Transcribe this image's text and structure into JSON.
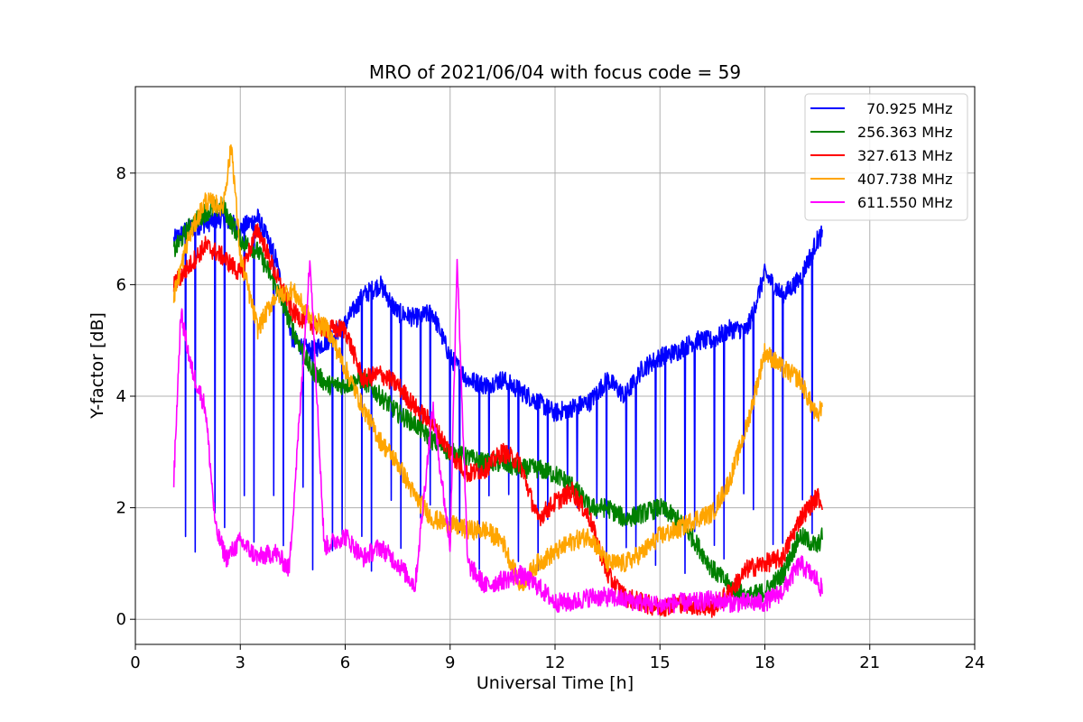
{
  "chart_data": {
    "type": "line",
    "title": "MRO of 2021/06/04 with focus code = 59",
    "xlabel": "Universal Time [h]",
    "ylabel": "Y-factor [dB]",
    "xlim": [
      0,
      24
    ],
    "ylim": [
      -0.45,
      9.55
    ],
    "xticks": [
      0,
      3,
      6,
      9,
      12,
      15,
      18,
      21,
      24
    ],
    "yticks": [
      0,
      2,
      4,
      6,
      8
    ],
    "grid": true,
    "legend_position": "top-right",
    "series": [
      {
        "name": "  70.925 MHz",
        "color": "#0000ff",
        "baseline": [
          [
            1.1,
            6.8
          ],
          [
            1.5,
            7.0
          ],
          [
            2.0,
            7.1
          ],
          [
            2.5,
            7.2
          ],
          [
            3.0,
            7.0
          ],
          [
            3.5,
            7.2
          ],
          [
            4.0,
            6.5
          ],
          [
            4.5,
            5.0
          ],
          [
            5.0,
            4.8
          ],
          [
            5.5,
            5.0
          ],
          [
            6.0,
            5.3
          ],
          [
            6.5,
            5.8
          ],
          [
            7.0,
            6.0
          ],
          [
            7.5,
            5.5
          ],
          [
            8.0,
            5.4
          ],
          [
            8.5,
            5.5
          ],
          [
            9.0,
            4.7
          ],
          [
            9.5,
            4.3
          ],
          [
            10.0,
            4.2
          ],
          [
            10.5,
            4.3
          ],
          [
            11.0,
            4.1
          ],
          [
            11.5,
            3.9
          ],
          [
            12.0,
            3.7
          ],
          [
            12.5,
            3.8
          ],
          [
            13.0,
            3.9
          ],
          [
            13.5,
            4.3
          ],
          [
            14.0,
            4.0
          ],
          [
            14.5,
            4.5
          ],
          [
            15.0,
            4.7
          ],
          [
            15.5,
            4.8
          ],
          [
            16.0,
            5.0
          ],
          [
            16.5,
            5.0
          ],
          [
            17.0,
            5.2
          ],
          [
            17.5,
            5.2
          ],
          [
            18.0,
            6.2
          ],
          [
            18.5,
            5.8
          ],
          [
            19.0,
            6.1
          ],
          [
            19.5,
            6.8
          ],
          [
            19.65,
            6.9
          ]
        ],
        "dip_interval_h": 0.28,
        "dip_value": 1.6,
        "dips_start": 1.15,
        "dips_end": 19.55
      },
      {
        "name": "256.363 MHz",
        "color": "#008000",
        "baseline": [
          [
            1.1,
            6.6
          ],
          [
            1.5,
            7.0
          ],
          [
            2.0,
            7.3
          ],
          [
            2.5,
            7.4
          ],
          [
            3.0,
            6.8
          ],
          [
            3.5,
            6.6
          ],
          [
            4.0,
            6.0
          ],
          [
            4.5,
            5.2
          ],
          [
            5.0,
            4.5
          ],
          [
            5.5,
            4.2
          ],
          [
            6.0,
            4.2
          ],
          [
            6.5,
            4.3
          ],
          [
            7.0,
            4.0
          ],
          [
            7.5,
            3.7
          ],
          [
            8.0,
            3.5
          ],
          [
            8.5,
            3.2
          ],
          [
            9.0,
            3.0
          ],
          [
            9.5,
            2.9
          ],
          [
            10.0,
            2.8
          ],
          [
            10.5,
            2.8
          ],
          [
            11.0,
            2.7
          ],
          [
            11.5,
            2.7
          ],
          [
            12.0,
            2.6
          ],
          [
            12.5,
            2.4
          ],
          [
            13.0,
            2.0
          ],
          [
            13.5,
            2.0
          ],
          [
            14.0,
            1.8
          ],
          [
            14.5,
            1.9
          ],
          [
            15.0,
            2.0
          ],
          [
            15.5,
            1.8
          ],
          [
            16.0,
            1.4
          ],
          [
            16.5,
            0.9
          ],
          [
            17.0,
            0.6
          ],
          [
            17.5,
            0.4
          ],
          [
            18.0,
            0.5
          ],
          [
            18.5,
            0.8
          ],
          [
            19.0,
            1.5
          ],
          [
            19.5,
            1.3
          ],
          [
            19.65,
            1.5
          ]
        ]
      },
      {
        "name": "327.613 MHz",
        "color": "#ff0000",
        "baseline": [
          [
            1.1,
            6.0
          ],
          [
            1.5,
            6.3
          ],
          [
            2.0,
            6.7
          ],
          [
            2.5,
            6.5
          ],
          [
            3.0,
            6.2
          ],
          [
            3.5,
            7.0
          ],
          [
            4.0,
            6.2
          ],
          [
            4.5,
            5.5
          ],
          [
            5.0,
            5.3
          ],
          [
            5.5,
            5.2
          ],
          [
            6.0,
            5.2
          ],
          [
            6.5,
            4.3
          ],
          [
            7.0,
            4.4
          ],
          [
            7.5,
            4.2
          ],
          [
            8.0,
            3.8
          ],
          [
            8.5,
            3.5
          ],
          [
            9.0,
            3.0
          ],
          [
            9.5,
            2.6
          ],
          [
            10.0,
            2.7
          ],
          [
            10.5,
            3.0
          ],
          [
            11.0,
            2.8
          ],
          [
            11.5,
            1.8
          ],
          [
            12.0,
            2.1
          ],
          [
            12.5,
            2.3
          ],
          [
            13.0,
            1.8
          ],
          [
            13.5,
            0.8
          ],
          [
            14.0,
            0.4
          ],
          [
            14.5,
            0.3
          ],
          [
            15.0,
            0.2
          ],
          [
            15.5,
            0.3
          ],
          [
            16.0,
            0.25
          ],
          [
            16.5,
            0.2
          ],
          [
            17.0,
            0.5
          ],
          [
            17.5,
            0.9
          ],
          [
            18.0,
            1.0
          ],
          [
            18.5,
            1.1
          ],
          [
            19.0,
            1.8
          ],
          [
            19.5,
            2.2
          ],
          [
            19.65,
            2.1
          ]
        ]
      },
      {
        "name": "407.738 MHz",
        "color": "#ffa500",
        "baseline": [
          [
            1.1,
            5.8
          ],
          [
            1.5,
            6.8
          ],
          [
            2.0,
            7.5
          ],
          [
            2.5,
            7.4
          ],
          [
            2.75,
            8.5
          ],
          [
            3.0,
            6.5
          ],
          [
            3.5,
            5.2
          ],
          [
            4.0,
            5.8
          ],
          [
            4.5,
            5.9
          ],
          [
            5.0,
            5.4
          ],
          [
            5.5,
            5.2
          ],
          [
            6.0,
            4.5
          ],
          [
            6.5,
            3.8
          ],
          [
            7.0,
            3.2
          ],
          [
            7.5,
            2.8
          ],
          [
            8.0,
            2.2
          ],
          [
            8.5,
            1.8
          ],
          [
            9.0,
            1.7
          ],
          [
            9.5,
            1.6
          ],
          [
            10.0,
            1.6
          ],
          [
            10.5,
            1.4
          ],
          [
            11.0,
            0.6
          ],
          [
            11.5,
            1.0
          ],
          [
            12.0,
            1.2
          ],
          [
            12.5,
            1.4
          ],
          [
            13.0,
            1.5
          ],
          [
            13.5,
            1.0
          ],
          [
            14.0,
            1.0
          ],
          [
            14.5,
            1.2
          ],
          [
            15.0,
            1.5
          ],
          [
            15.5,
            1.6
          ],
          [
            16.0,
            1.8
          ],
          [
            16.5,
            1.9
          ],
          [
            17.0,
            2.5
          ],
          [
            17.5,
            3.5
          ],
          [
            18.0,
            4.8
          ],
          [
            18.5,
            4.5
          ],
          [
            19.0,
            4.3
          ],
          [
            19.5,
            3.6
          ],
          [
            19.65,
            3.9
          ]
        ]
      },
      {
        "name": "611.550 MHz",
        "color": "#ff00ff",
        "baseline": [
          [
            1.1,
            2.5
          ],
          [
            1.3,
            5.5
          ],
          [
            1.6,
            4.5
          ],
          [
            2.0,
            3.8
          ],
          [
            2.3,
            1.6
          ],
          [
            2.6,
            1.1
          ],
          [
            3.0,
            1.4
          ],
          [
            3.5,
            1.1
          ],
          [
            4.0,
            1.2
          ],
          [
            4.4,
            0.9
          ],
          [
            5.0,
            6.5
          ],
          [
            5.4,
            1.3
          ],
          [
            6.0,
            1.5
          ],
          [
            6.5,
            1.1
          ],
          [
            7.0,
            1.3
          ],
          [
            7.5,
            1.0
          ],
          [
            8.0,
            0.6
          ],
          [
            8.5,
            3.8
          ],
          [
            9.0,
            1.3
          ],
          [
            9.2,
            6.5
          ],
          [
            9.5,
            1.0
          ],
          [
            10.0,
            0.6
          ],
          [
            10.5,
            0.7
          ],
          [
            11.0,
            0.8
          ],
          [
            11.5,
            0.6
          ],
          [
            12.0,
            0.3
          ],
          [
            12.5,
            0.3
          ],
          [
            13.0,
            0.4
          ],
          [
            13.5,
            0.4
          ],
          [
            14.0,
            0.35
          ],
          [
            14.5,
            0.3
          ],
          [
            15.0,
            0.25
          ],
          [
            15.5,
            0.3
          ],
          [
            16.0,
            0.3
          ],
          [
            16.5,
            0.35
          ],
          [
            17.0,
            0.3
          ],
          [
            17.5,
            0.3
          ],
          [
            18.0,
            0.3
          ],
          [
            18.5,
            0.5
          ],
          [
            19.0,
            1.0
          ],
          [
            19.5,
            0.7
          ],
          [
            19.65,
            0.5
          ]
        ]
      }
    ]
  }
}
